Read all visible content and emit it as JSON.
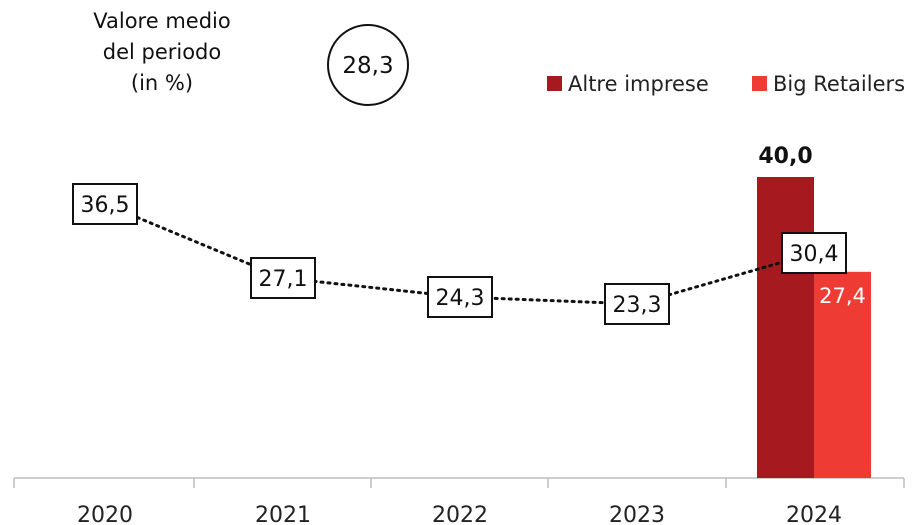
{
  "note": {
    "lines": [
      "Valore medio",
      "del periodo",
      "(in %)"
    ],
    "average": "28,3"
  },
  "chart_data": {
    "type": "line+bar",
    "categories": [
      "2020",
      "2021",
      "2022",
      "2023",
      "2024"
    ],
    "line": {
      "values": [
        36.5,
        27.1,
        24.3,
        23.3,
        30.4
      ],
      "labels": [
        "36,5",
        "27,1",
        "24,3",
        "23,3",
        "30,4"
      ],
      "style": "dotted",
      "color": "#111111"
    },
    "bars": {
      "category": "2024",
      "series": [
        {
          "name": "Altre imprese",
          "value": 40.0,
          "label": "40,0",
          "color": "#a6191e"
        },
        {
          "name": "Big Retailers",
          "value": 27.4,
          "label": "27,4",
          "color": "#ee3b33"
        }
      ]
    },
    "legend_position": "top-right",
    "ylim": [
      0,
      45
    ],
    "grid": false
  }
}
